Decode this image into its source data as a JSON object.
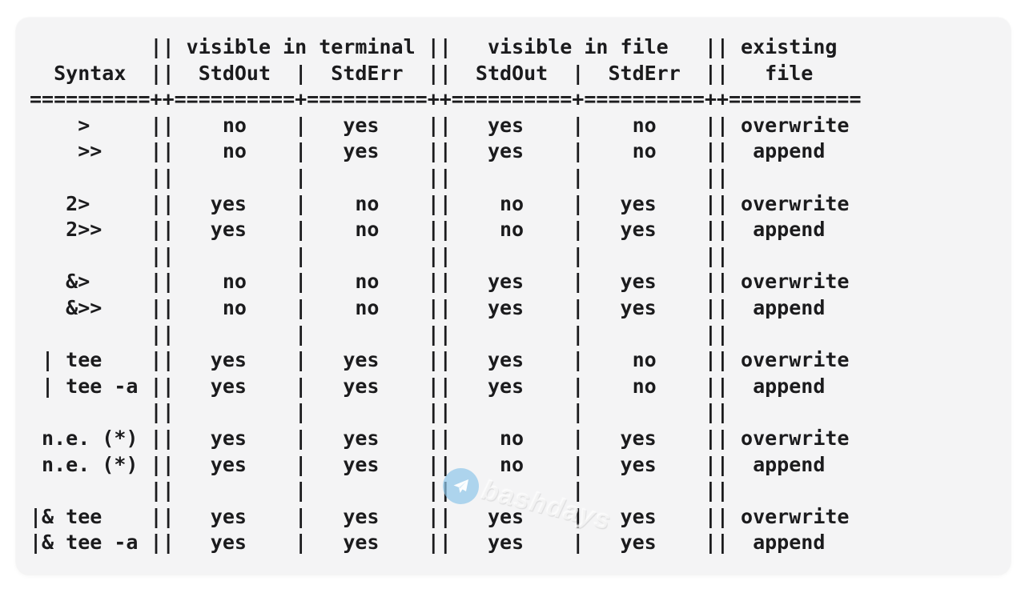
{
  "page": {
    "background": "#ffffff",
    "panel_background": "#f4f4f5",
    "text_color": "#1b1b1d"
  },
  "table": {
    "group_headers": [
      "visible in terminal",
      "visible in file",
      "existing"
    ],
    "column_headers": [
      "Syntax",
      "StdOut",
      "StdErr",
      "StdOut",
      "StdErr",
      "file"
    ],
    "rows": [
      {
        "syntax": ">",
        "terminal_stdout": "no",
        "terminal_stderr": "yes",
        "file_stdout": "yes",
        "file_stderr": "no",
        "existing_file": "overwrite"
      },
      {
        "syntax": ">>",
        "terminal_stdout": "no",
        "terminal_stderr": "yes",
        "file_stdout": "yes",
        "file_stderr": "no",
        "existing_file": "append"
      },
      {
        "syntax": "2>",
        "terminal_stdout": "yes",
        "terminal_stderr": "no",
        "file_stdout": "no",
        "file_stderr": "yes",
        "existing_file": "overwrite"
      },
      {
        "syntax": "2>>",
        "terminal_stdout": "yes",
        "terminal_stderr": "no",
        "file_stdout": "no",
        "file_stderr": "yes",
        "existing_file": "append"
      },
      {
        "syntax": "&>",
        "terminal_stdout": "no",
        "terminal_stderr": "no",
        "file_stdout": "yes",
        "file_stderr": "yes",
        "existing_file": "overwrite"
      },
      {
        "syntax": "&>>",
        "terminal_stdout": "no",
        "terminal_stderr": "no",
        "file_stdout": "yes",
        "file_stderr": "yes",
        "existing_file": "append"
      },
      {
        "syntax": "| tee",
        "terminal_stdout": "yes",
        "terminal_stderr": "yes",
        "file_stdout": "yes",
        "file_stderr": "no",
        "existing_file": "overwrite"
      },
      {
        "syntax": "| tee -a",
        "terminal_stdout": "yes",
        "terminal_stderr": "yes",
        "file_stdout": "yes",
        "file_stderr": "no",
        "existing_file": "append"
      },
      {
        "syntax": "n.e. (*)",
        "terminal_stdout": "yes",
        "terminal_stderr": "yes",
        "file_stdout": "no",
        "file_stderr": "yes",
        "existing_file": "overwrite"
      },
      {
        "syntax": "n.e. (*)",
        "terminal_stdout": "yes",
        "terminal_stderr": "yes",
        "file_stdout": "no",
        "file_stderr": "yes",
        "existing_file": "append"
      },
      {
        "syntax": "|& tee",
        "terminal_stdout": "yes",
        "terminal_stderr": "yes",
        "file_stdout": "yes",
        "file_stderr": "yes",
        "existing_file": "overwrite"
      },
      {
        "syntax": "|& tee -a",
        "terminal_stdout": "yes",
        "terminal_stderr": "yes",
        "file_stdout": "yes",
        "file_stderr": "yes",
        "existing_file": "append"
      }
    ]
  },
  "ascii": {
    "lines": [
      "          || visible in terminal ||   visible in file   || existing",
      "  Syntax  ||  StdOut  |  StdErr  ||  StdOut  |  StdErr  ||   file",
      "==========++==========+==========++==========+==========++===========",
      "    >     ||    no    |   yes    ||   yes    |    no    || overwrite",
      "    >>    ||    no    |   yes    ||   yes    |    no    ||  append",
      "          ||          |          ||          |          ||",
      "   2>     ||   yes    |    no    ||    no    |   yes    || overwrite",
      "   2>>    ||   yes    |    no    ||    no    |   yes    ||  append",
      "          ||          |          ||          |          ||",
      "   &>     ||    no    |    no    ||   yes    |   yes    || overwrite",
      "   &>>    ||    no    |    no    ||   yes    |   yes    ||  append",
      "          ||          |          ||          |          ||",
      " | tee    ||   yes    |   yes    ||   yes    |    no    || overwrite",
      " | tee -a ||   yes    |   yes    ||   yes    |    no    ||  append",
      "          ||          |          ||          |          ||",
      " n.e. (*) ||   yes    |   yes    ||    no    |   yes    || overwrite",
      " n.e. (*) ||   yes    |   yes    ||    no    |   yes    ||  append",
      "          ||          |          ||          |          ||",
      "|& tee    ||   yes    |   yes    ||   yes    |   yes    || overwrite",
      "|& tee -a ||   yes    |   yes    ||   yes    |   yes    ||  append"
    ]
  },
  "watermark": {
    "text": "bashdays",
    "icon": "paper-plane-icon",
    "circle_color": "#8ec6e9"
  }
}
